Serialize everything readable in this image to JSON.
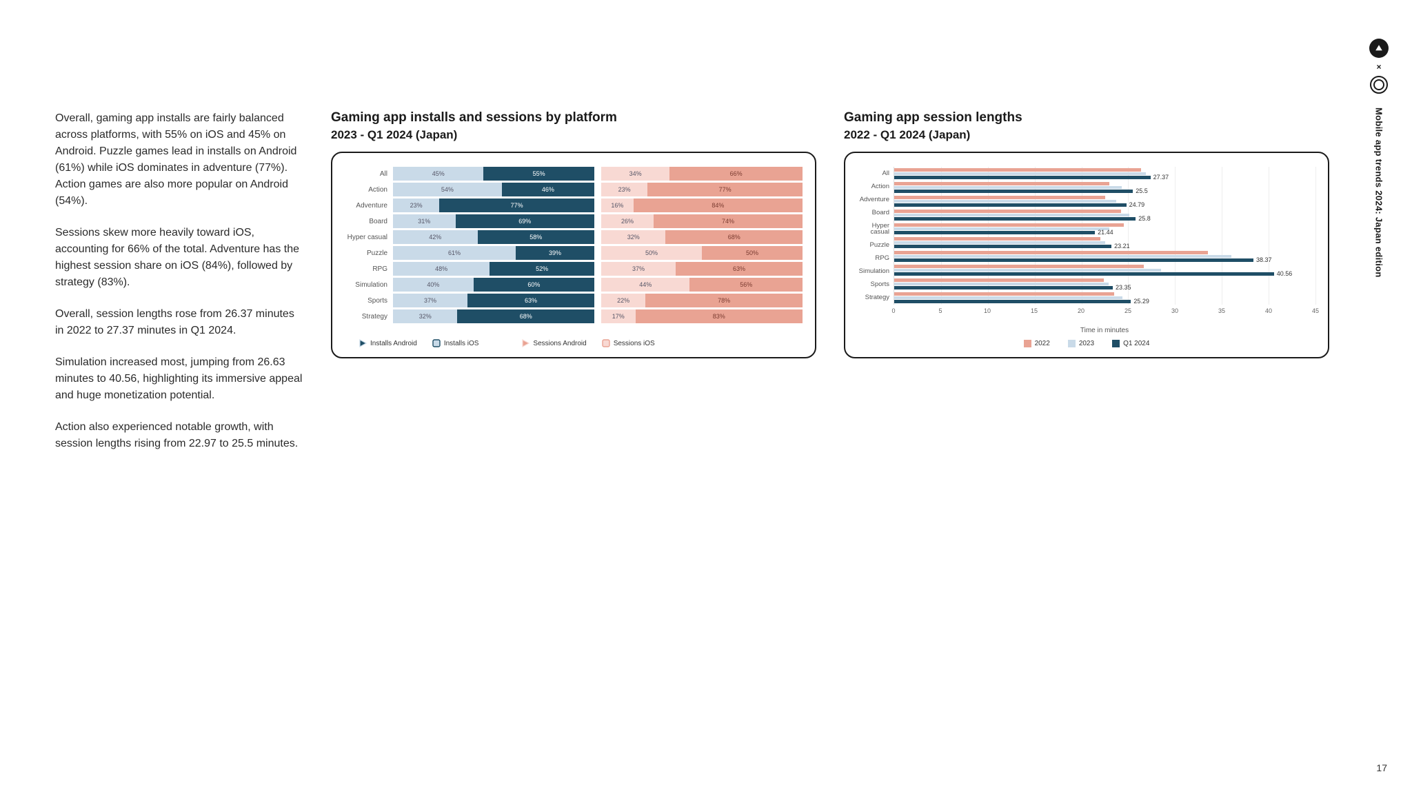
{
  "sideLabel": "Mobile app trends 2024: Japan edition",
  "pageNumber": "17",
  "paragraphs": [
    "Overall, gaming app installs are fairly balanced across platforms, with 55% on iOS and 45% on Android. Puzzle games lead in installs on Android (61%) while iOS dominates in adventure (77%). Action games are also more popular on Android (54%).",
    "Sessions skew more heavily toward iOS, accounting for 66% of the total. Adventure has the highest session share on iOS (84%), followed by strategy (83%).",
    "Overall, session lengths rose from 26.37 minutes in 2022 to 27.37 minutes in Q1 2024.",
    "Simulation increased most, jumping from 26.63 minutes to 40.56, highlighting its immersive appeal and huge monetization potential.",
    "Action also experienced notable growth, with session lengths rising from 22.97 to 25.5 minutes."
  ],
  "chart1": {
    "title": "Gaming app installs and sessions by platform",
    "subtitle": "2023 - Q1 2024 (Japan)",
    "type": "stacked-100-horizontal",
    "categories": [
      "All",
      "Action",
      "Adventure",
      "Board",
      "Hyper casual",
      "Puzzle",
      "RPG",
      "Simulation",
      "Sports",
      "Strategy"
    ],
    "installs": [
      {
        "android": 45,
        "ios": 55
      },
      {
        "android": 54,
        "ios": 46
      },
      {
        "android": 23,
        "ios": 77
      },
      {
        "android": 31,
        "ios": 69
      },
      {
        "android": 42,
        "ios": 58
      },
      {
        "android": 61,
        "ios": 39
      },
      {
        "android": 48,
        "ios": 52
      },
      {
        "android": 40,
        "ios": 60
      },
      {
        "android": 37,
        "ios": 63
      },
      {
        "android": 32,
        "ios": 68
      }
    ],
    "sessions": [
      {
        "android": 34,
        "ios": 66
      },
      {
        "android": 23,
        "ios": 77
      },
      {
        "android": 16,
        "ios": 84
      },
      {
        "android": 26,
        "ios": 74
      },
      {
        "android": 32,
        "ios": 68
      },
      {
        "android": 50,
        "ios": 50
      },
      {
        "android": 37,
        "ios": 63
      },
      {
        "android": 44,
        "ios": 56
      },
      {
        "android": 22,
        "ios": 78
      },
      {
        "android": 17,
        "ios": 83
      }
    ],
    "colors": {
      "installs_android": "#c9dae8",
      "installs_ios": "#1f4e66",
      "sessions_android": "#f8d9d3",
      "sessions_ios": "#e9a393"
    },
    "legend": [
      "Installs Android",
      "Installs iOS",
      "Sessions Android",
      "Sessions iOS"
    ],
    "label_fontsize": 10
  },
  "chart2": {
    "title": "Gaming app session lengths",
    "subtitle": "2022 - Q1 2024 (Japan)",
    "type": "grouped-horizontal-bar",
    "categories": [
      "All",
      "Action",
      "Adventure",
      "Board",
      "Hyper casual",
      "Puzzle",
      "RPG",
      "Simulation",
      "Sports",
      "Strategy"
    ],
    "series": [
      {
        "name": "2022",
        "color": "#e9a393"
      },
      {
        "name": "2023",
        "color": "#c9dae8"
      },
      {
        "name": "Q1 2024",
        "color": "#1f4e66"
      }
    ],
    "data": {
      "All": [
        26.37,
        26.9,
        27.37
      ],
      "Action": [
        22.97,
        24.3,
        25.5
      ],
      "Adventure": [
        22.5,
        23.7,
        24.79
      ],
      "Board": [
        24.2,
        25.1,
        25.8
      ],
      "Hyper casual": [
        24.5,
        23.0,
        21.44
      ],
      "Puzzle": [
        22.0,
        22.5,
        23.21
      ],
      "RPG": [
        33.5,
        36.0,
        38.37
      ],
      "Simulation": [
        26.63,
        28.5,
        40.56
      ],
      "Sports": [
        22.4,
        22.9,
        23.35
      ],
      "Strategy": [
        23.5,
        24.4,
        25.29
      ]
    },
    "show_value_for": "Q1 2024",
    "xaxis": {
      "min": 0,
      "max": 45,
      "step": 5,
      "label": "Time in minutes"
    },
    "grid_color": "#eeeeee",
    "label_fontsize": 10
  }
}
